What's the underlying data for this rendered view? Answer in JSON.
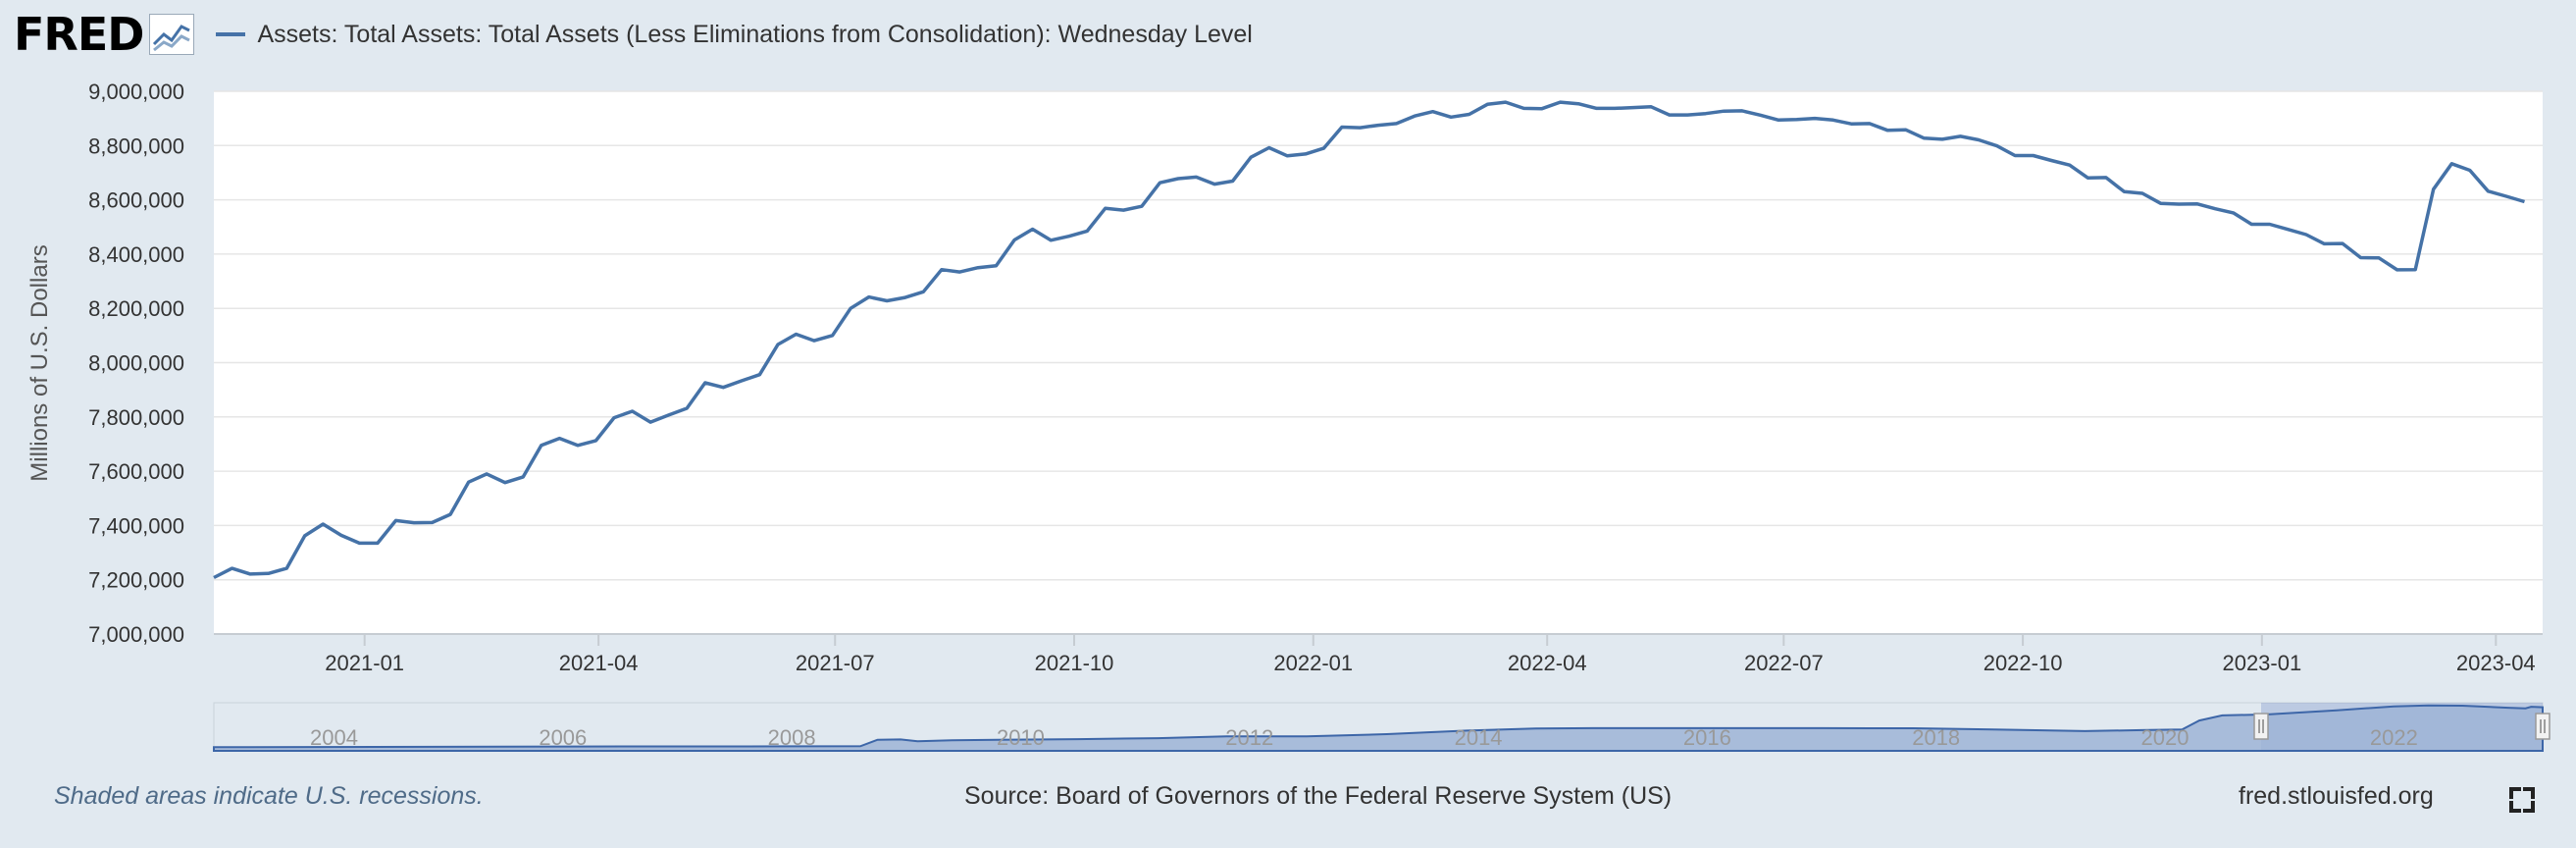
{
  "header": {
    "logo_text": "FRED",
    "legend_label": "Assets: Total Assets: Total Assets (Less Eliminations from Consolidation): Wednesday Level"
  },
  "footer": {
    "recession_note": "Shaded areas indicate U.S. recessions.",
    "source": "Source: Board of Governors of the Federal Reserve System (US)",
    "site": "fred.stlouisfed.org"
  },
  "icons": [
    "fred-logo-icon",
    "fullscreen-icon"
  ],
  "colors": {
    "series": "#4572a7",
    "background": "#e1e9f0",
    "plot": "#ffffff",
    "navigator_fill": "#9eb4d6"
  },
  "chart_data": {
    "type": "line",
    "title": "",
    "xlabel": "",
    "ylabel": "Millions of U.S. Dollars",
    "ylim": [
      7000000,
      9000000
    ],
    "yticks": [
      7000000,
      7200000,
      7400000,
      7600000,
      7800000,
      8000000,
      8200000,
      8400000,
      8600000,
      8800000,
      9000000
    ],
    "ytick_labels": [
      "7,000,000",
      "7,200,000",
      "7,400,000",
      "7,600,000",
      "7,800,000",
      "8,000,000",
      "8,200,000",
      "8,400,000",
      "8,600,000",
      "8,800,000",
      "9,000,000"
    ],
    "xlim": [
      "2020-11-04",
      "2023-04-19"
    ],
    "xticks": [
      "2021-01-01",
      "2021-04-01",
      "2021-07-01",
      "2021-10-01",
      "2022-01-01",
      "2022-04-01",
      "2022-07-01",
      "2022-10-01",
      "2023-01-01",
      "2023-04-01"
    ],
    "xtick_labels": [
      "2021-01",
      "2021-04",
      "2021-07",
      "2021-10",
      "2022-01",
      "2022-04",
      "2022-07",
      "2022-10",
      "2023-01",
      "2023-04"
    ],
    "grid": true,
    "legend": "top-left",
    "series": [
      {
        "name": "Assets: Total Assets: Total Assets (Less Eliminations from Consolidation): Wednesday Level",
        "start": "2020-11-04",
        "step_days": 7,
        "values": [
          7208000,
          7242000,
          7221000,
          7223000,
          7242000,
          7362000,
          7405000,
          7364000,
          7335000,
          7335000,
          7418000,
          7410000,
          7411000,
          7441000,
          7560000,
          7590000,
          7558000,
          7579000,
          7695000,
          7721000,
          7695000,
          7713000,
          7797000,
          7821000,
          7781000,
          7807000,
          7832000,
          7926000,
          7909000,
          7933000,
          7956000,
          8067000,
          8105000,
          8081000,
          8100000,
          8200000,
          8242000,
          8228000,
          8240000,
          8261000,
          8343000,
          8334000,
          8350000,
          8357000,
          8452000,
          8492000,
          8451000,
          8466000,
          8485000,
          8569000,
          8562000,
          8576000,
          8663000,
          8678000,
          8684000,
          8658000,
          8669000,
          8757000,
          8792000,
          8762000,
          8769000,
          8790000,
          8868000,
          8866000,
          8875000,
          8881000,
          8909000,
          8925000,
          8905000,
          8915000,
          8952000,
          8960000,
          8937000,
          8936000,
          8960000,
          8954000,
          8937000,
          8937000,
          8940000,
          8943000,
          8913000,
          8913000,
          8918000,
          8927000,
          8928000,
          8912000,
          8894000,
          8896000,
          8900000,
          8894000,
          8880000,
          8881000,
          8856000,
          8858000,
          8827000,
          8823000,
          8834000,
          8821000,
          8799000,
          8763000,
          8763000,
          8745000,
          8728000,
          8681000,
          8682000,
          8630000,
          8624000,
          8587000,
          8584000,
          8585000,
          8567000,
          8552000,
          8510000,
          8510000,
          8491000,
          8472000,
          8438000,
          8439000,
          8387000,
          8386000,
          8342000,
          8343000,
          8639000,
          8733000,
          8709000,
          8632000,
          8613000,
          8593000
        ]
      }
    ],
    "navigator": {
      "tick_labels": [
        "2004",
        "2006",
        "2008",
        "2010",
        "2012",
        "2014",
        "2016",
        "2018",
        "2020",
        "2022"
      ],
      "x_start": 2002.95,
      "x_end": 2023.3,
      "selected_range": [
        2020.84,
        2023.3
      ],
      "ylim": [
        0,
        9500000
      ],
      "points": [
        [
          2002.95,
          720000
        ],
        [
          2006,
          860000
        ],
        [
          2008,
          900000
        ],
        [
          2008.6,
          920000
        ],
        [
          2008.75,
          2200000
        ],
        [
          2008.95,
          2250000
        ],
        [
          2009.1,
          1900000
        ],
        [
          2009.4,
          2100000
        ],
        [
          2009.8,
          2200000
        ],
        [
          2010.5,
          2300000
        ],
        [
          2011.2,
          2500000
        ],
        [
          2011.8,
          2850000
        ],
        [
          2012.5,
          2850000
        ],
        [
          2013.2,
          3300000
        ],
        [
          2013.9,
          4000000
        ],
        [
          2014.5,
          4400000
        ],
        [
          2015,
          4480000
        ],
        [
          2016,
          4480000
        ],
        [
          2017,
          4470000
        ],
        [
          2017.8,
          4450000
        ],
        [
          2018.5,
          4200000
        ],
        [
          2019.3,
          3900000
        ],
        [
          2019.8,
          4100000
        ],
        [
          2020.15,
          4200000
        ],
        [
          2020.3,
          6000000
        ],
        [
          2020.5,
          7000000
        ],
        [
          2020.9,
          7200000
        ],
        [
          2021.5,
          8000000
        ],
        [
          2022,
          8770000
        ],
        [
          2022.3,
          8960000
        ],
        [
          2022.6,
          8920000
        ],
        [
          2023,
          8520000
        ],
        [
          2023.15,
          8400000
        ],
        [
          2023.2,
          8700000
        ],
        [
          2023.3,
          8600000
        ]
      ]
    }
  }
}
